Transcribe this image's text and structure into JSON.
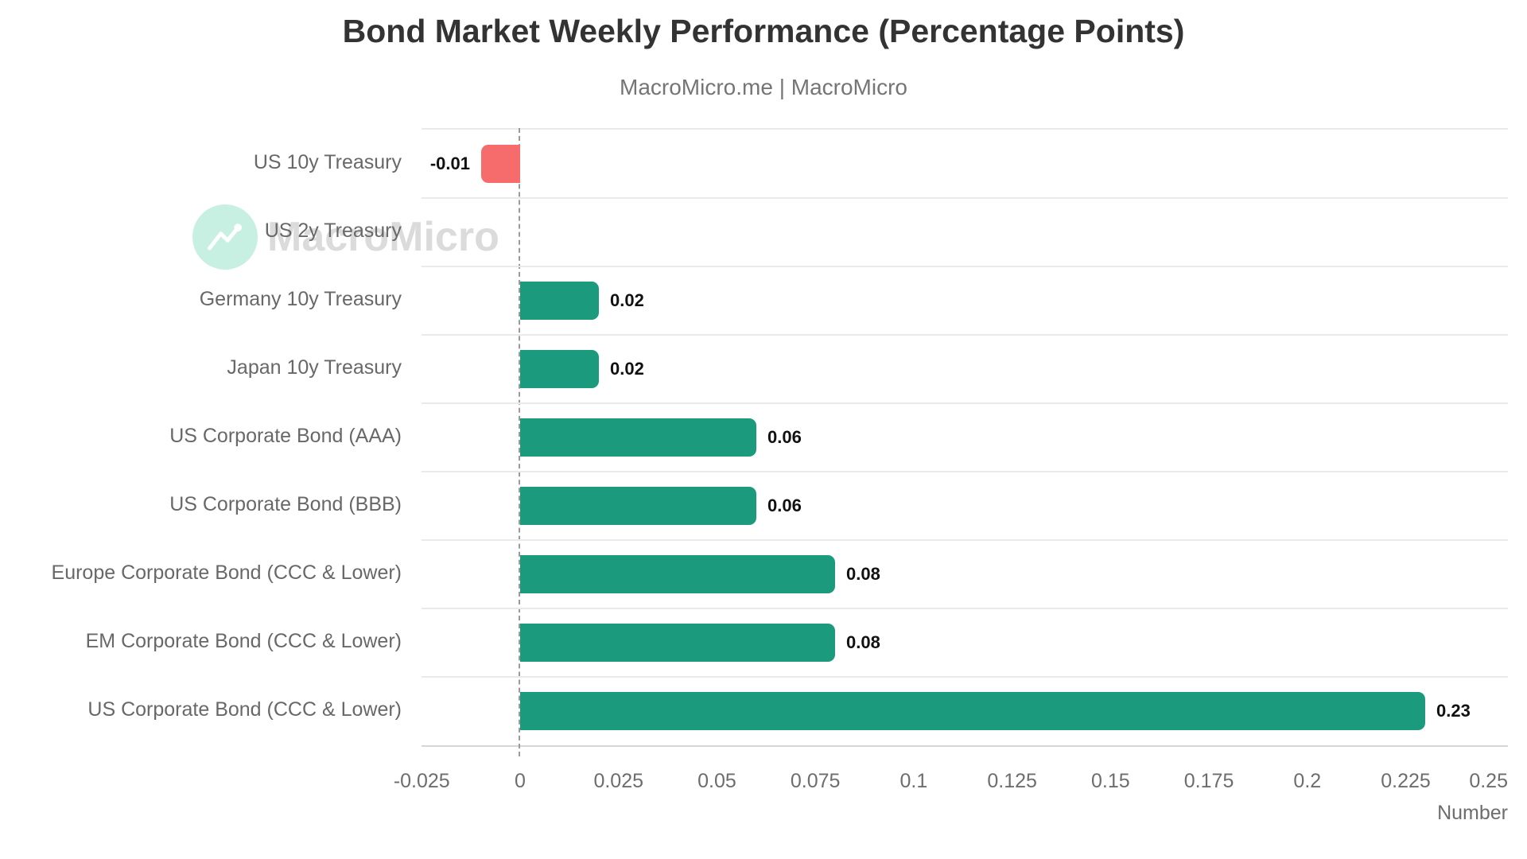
{
  "title": "Bond Market Weekly Performance (Percentage Points)",
  "subtitle": "MacroMicro.me | MacroMicro",
  "watermark": {
    "text": "MacroMicro"
  },
  "axis": {
    "title": "Number",
    "ticks": [
      {
        "label": "-0.025",
        "value": -0.025
      },
      {
        "label": "0",
        "value": 0
      },
      {
        "label": "0.025",
        "value": 0.025
      },
      {
        "label": "0.05",
        "value": 0.05
      },
      {
        "label": "0.075",
        "value": 0.075
      },
      {
        "label": "0.1",
        "value": 0.1
      },
      {
        "label": "0.125",
        "value": 0.125
      },
      {
        "label": "0.15",
        "value": 0.15
      },
      {
        "label": "0.175",
        "value": 0.175
      },
      {
        "label": "0.2",
        "value": 0.2
      },
      {
        "label": "0.225",
        "value": 0.225
      },
      {
        "label": "0.25",
        "value": 0.25
      }
    ]
  },
  "chart_data": {
    "type": "bar",
    "orientation": "horizontal",
    "title": "Bond Market Weekly Performance (Percentage Points)",
    "subtitle": "MacroMicro.me | MacroMicro",
    "categories": [
      "US 10y Treasury",
      "US 2y Treasury",
      "Germany 10y Treasury",
      "Japan 10y Treasury",
      "US Corporate Bond (AAA)",
      "US Corporate Bond (BBB)",
      "Europe Corporate Bond (CCC & Lower)",
      "EM Corporate Bond (CCC & Lower)",
      "US Corporate Bond (CCC & Lower)"
    ],
    "values": [
      -0.01,
      0,
      0.02,
      0.02,
      0.06,
      0.06,
      0.08,
      0.08,
      0.23
    ],
    "value_labels": [
      "-0.01",
      "",
      "0.02",
      "0.02",
      "0.06",
      "0.06",
      "0.08",
      "0.08",
      "0.23"
    ],
    "xlabel": "Number",
    "xlim": [
      -0.025,
      0.251
    ],
    "grid": "horizontal row separators only",
    "legend": "none",
    "zero_line": "dashed vertical at 0",
    "colors": {
      "positive_bar": "#1b9a7d",
      "negative_bar": "#f66c6c",
      "value_label": "#111111",
      "category_label": "#686868",
      "tick_label": "#6d6d6d",
      "title": "#333333",
      "subtitle": "#757575",
      "separator": "#eaeaea",
      "watermark_text": "#dbdbdb",
      "watermark_circle": "#c7f0e3"
    }
  }
}
